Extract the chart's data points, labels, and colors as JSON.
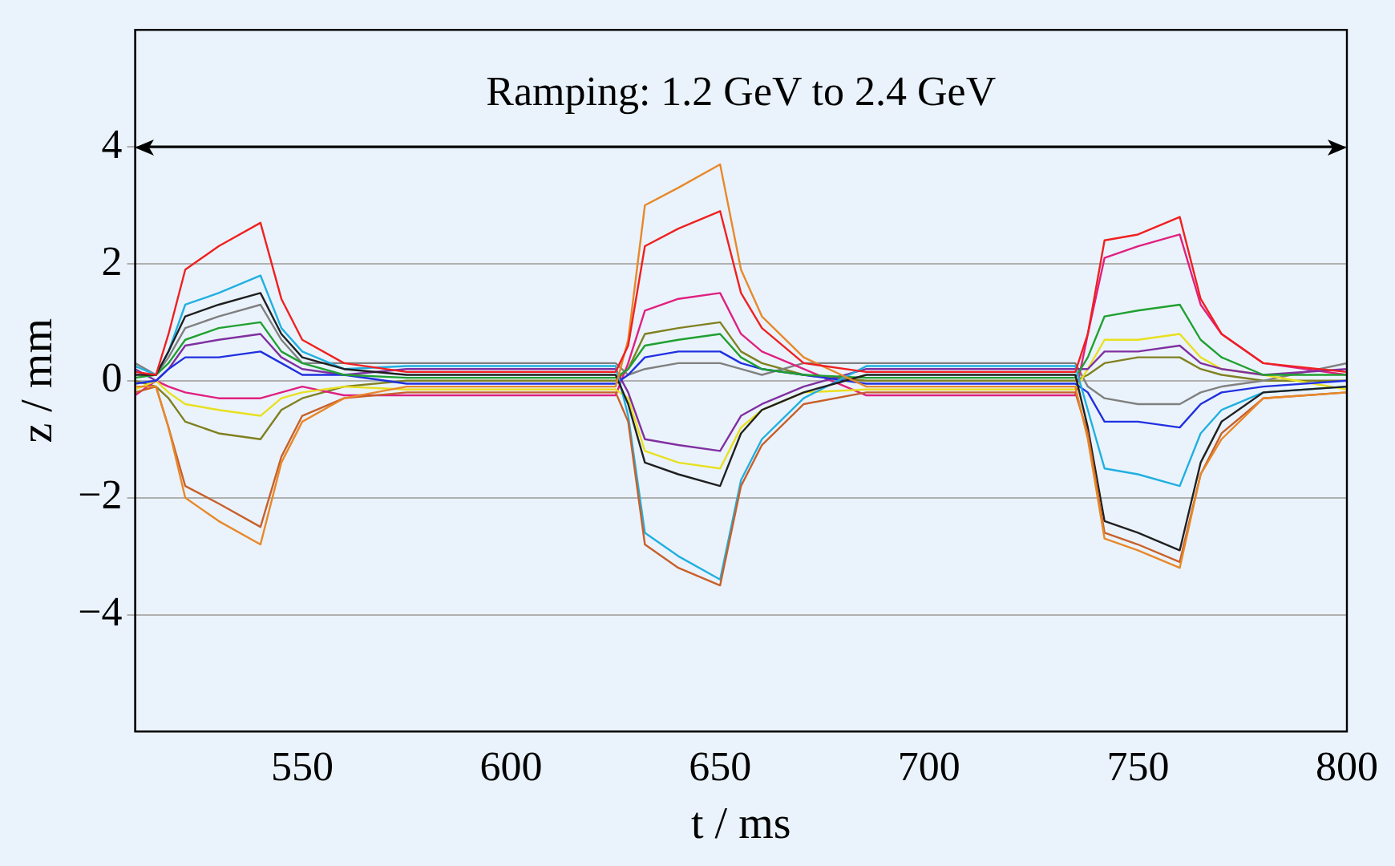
{
  "chart_data": {
    "type": "line",
    "xlabel": "t / ms",
    "ylabel": "z / mm",
    "annotations": [
      "Ramping: 1.2 GeV to 2.4 GeV"
    ],
    "ref_lines": [
      {
        "axis": "y",
        "value": 4,
        "color": "#000000",
        "line_style": "solid"
      }
    ],
    "x": [
      510,
      515,
      518,
      522,
      530,
      540,
      545,
      550,
      560,
      575,
      600,
      625,
      628,
      632,
      640,
      650,
      655,
      660,
      670,
      685,
      700,
      720,
      735,
      738,
      742,
      750,
      760,
      765,
      770,
      780,
      800
    ],
    "xlim": [
      510,
      800
    ],
    "xticks": [
      550,
      600,
      650,
      700,
      750,
      800
    ],
    "ylim": [
      -6,
      6
    ],
    "yticks": [
      {
        "value": -4,
        "label": "−4"
      },
      {
        "value": -2,
        "label": "−2"
      },
      0,
      2,
      4
    ],
    "grid": "y",
    "legend": false,
    "marker": "none",
    "line_style": "solid",
    "series": [
      {
        "color": "#f02020",
        "values": [
          0.15,
          0.1,
          0.8,
          1.9,
          2.3,
          2.7,
          1.4,
          0.7,
          0.3,
          0.15,
          0.15,
          0.15,
          0.6,
          2.3,
          2.6,
          2.9,
          1.5,
          0.9,
          0.3,
          0.15,
          0.15,
          0.15,
          0.15,
          0.8,
          2.4,
          2.5,
          2.8,
          1.4,
          0.8,
          0.3,
          0.15
        ]
      },
      {
        "color": "#e8882a",
        "values": [
          -0.1,
          -0.1,
          -0.8,
          -2.0,
          -2.4,
          -2.8,
          -1.4,
          -0.7,
          -0.3,
          -0.1,
          -0.1,
          -0.1,
          0.7,
          3.0,
          3.3,
          3.7,
          1.9,
          1.1,
          0.4,
          -0.1,
          -0.1,
          -0.1,
          -0.1,
          -1.0,
          -2.7,
          -2.9,
          -3.2,
          -1.6,
          -1.0,
          -0.3,
          -0.2
        ]
      },
      {
        "color": "#c8602a",
        "values": [
          -0.2,
          -0.1,
          -0.8,
          -1.8,
          -2.1,
          -2.5,
          -1.3,
          -0.6,
          -0.3,
          -0.2,
          -0.2,
          -0.2,
          -0.7,
          -2.8,
          -3.2,
          -3.5,
          -1.8,
          -1.1,
          -0.4,
          -0.2,
          -0.2,
          -0.2,
          -0.2,
          -0.9,
          -2.6,
          -2.8,
          -3.1,
          -1.6,
          -0.9,
          -0.3,
          -0.2
        ]
      },
      {
        "color": "#202020",
        "values": [
          0.1,
          0.1,
          0.5,
          1.1,
          1.3,
          1.5,
          0.8,
          0.4,
          0.2,
          0.1,
          0.1,
          0.1,
          -0.4,
          -1.4,
          -1.6,
          -1.8,
          -0.9,
          -0.5,
          -0.2,
          0.1,
          0.1,
          0.1,
          0.1,
          -0.8,
          -2.4,
          -2.6,
          -2.9,
          -1.4,
          -0.7,
          -0.2,
          -0.1
        ]
      },
      {
        "color": "#20b0e0",
        "values": [
          0.25,
          0.1,
          0.5,
          1.3,
          1.5,
          1.8,
          0.9,
          0.5,
          0.2,
          0.25,
          0.25,
          0.25,
          -0.6,
          -2.6,
          -3.0,
          -3.4,
          -1.7,
          -1.0,
          -0.3,
          0.25,
          0.25,
          0.25,
          0.25,
          -0.5,
          -1.5,
          -1.6,
          -1.8,
          -0.9,
          -0.5,
          -0.2,
          -0.1
        ]
      },
      {
        "color": "#20a030",
        "values": [
          0.05,
          0.1,
          0.3,
          0.7,
          0.9,
          1.0,
          0.5,
          0.3,
          0.1,
          0.05,
          0.05,
          0.05,
          0.2,
          0.6,
          0.7,
          0.8,
          0.4,
          0.2,
          0.1,
          0.05,
          0.05,
          0.05,
          0.05,
          0.4,
          1.1,
          1.2,
          1.3,
          0.7,
          0.4,
          0.1,
          0.1
        ]
      },
      {
        "color": "#2030e0",
        "values": [
          -0.05,
          0,
          0.2,
          0.4,
          0.4,
          0.5,
          0.3,
          0.1,
          0.1,
          -0.05,
          -0.05,
          -0.05,
          0.1,
          0.4,
          0.5,
          0.5,
          0.3,
          0.2,
          0.1,
          -0.05,
          -0.05,
          -0.05,
          -0.05,
          -0.2,
          -0.7,
          -0.7,
          -0.8,
          -0.4,
          -0.2,
          -0.1,
          0
        ]
      },
      {
        "color": "#8030a0",
        "values": [
          0.2,
          0,
          0.2,
          0.6,
          0.7,
          0.8,
          0.4,
          0.2,
          0.1,
          0.2,
          0.2,
          0.2,
          -0.2,
          -1.0,
          -1.1,
          -1.2,
          -0.6,
          -0.4,
          -0.1,
          0.2,
          0.2,
          0.2,
          0.2,
          0.2,
          0.5,
          0.5,
          0.6,
          0.3,
          0.2,
          0.1,
          0.2
        ]
      },
      {
        "color": "#e8e020",
        "values": [
          -0.15,
          0,
          -0.2,
          -0.4,
          -0.5,
          -0.6,
          -0.3,
          -0.2,
          -0.1,
          -0.15,
          -0.15,
          -0.15,
          -0.3,
          -1.2,
          -1.4,
          -1.5,
          -0.8,
          -0.5,
          -0.2,
          -0.15,
          -0.15,
          -0.15,
          -0.15,
          0.2,
          0.7,
          0.7,
          0.8,
          0.4,
          0.2,
          0.1,
          -0.15
        ]
      },
      {
        "color": "#e02080",
        "values": [
          -0.25,
          0,
          -0.1,
          -0.2,
          -0.3,
          -0.3,
          -0.2,
          -0.1,
          -0.25,
          -0.25,
          -0.25,
          -0.25,
          0.3,
          1.2,
          1.4,
          1.5,
          0.8,
          0.5,
          0.2,
          -0.25,
          -0.25,
          -0.25,
          -0.25,
          0.8,
          2.1,
          2.3,
          2.5,
          1.3,
          0.8,
          0.3,
          0.1
        ]
      },
      {
        "color": "#808080",
        "values": [
          0.3,
          0.1,
          0.4,
          0.9,
          1.1,
          1.3,
          0.7,
          0.3,
          0.3,
          0.3,
          0.3,
          0.3,
          0.1,
          0.2,
          0.3,
          0.3,
          0.2,
          0.1,
          0.3,
          0.3,
          0.3,
          0.3,
          0.3,
          -0.1,
          -0.3,
          -0.4,
          -0.4,
          -0.2,
          -0.1,
          0,
          0.3
        ]
      },
      {
        "color": "#808020",
        "values": [
          0,
          -0.1,
          -0.3,
          -0.7,
          -0.9,
          -1.0,
          -0.5,
          -0.3,
          -0.1,
          0,
          0,
          0,
          0.2,
          0.8,
          0.9,
          1.0,
          0.5,
          0.3,
          0.1,
          0,
          0,
          0,
          0,
          0.1,
          0.3,
          0.4,
          0.4,
          0.2,
          0.1,
          0,
          0
        ]
      }
    ]
  }
}
